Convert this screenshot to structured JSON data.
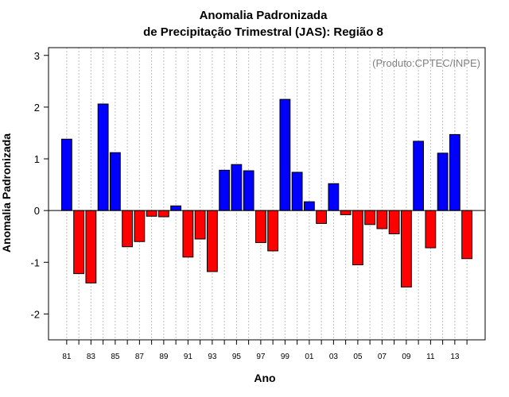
{
  "chart_data": {
    "type": "bar",
    "title_line1": "Anomalia Padronizada",
    "title_line2": "de Precipitação Trimestral (JAS): Região 8",
    "xlabel": "Ano",
    "ylabel": "Anomalia Padronizada",
    "annotation": "(Produto:CPTEC/INPE)",
    "ylim": [
      -2.5,
      3.15
    ],
    "yticks": [
      -2,
      -1,
      0,
      1,
      2,
      3
    ],
    "ytick_labels": [
      "-2",
      "-1",
      "0",
      "1",
      "2",
      "3"
    ],
    "categories": [
      "81",
      "82",
      "83",
      "84",
      "85",
      "86",
      "87",
      "88",
      "89",
      "90",
      "91",
      "92",
      "93",
      "94",
      "95",
      "96",
      "97",
      "98",
      "99",
      "00",
      "01",
      "02",
      "03",
      "04",
      "05",
      "06",
      "07",
      "08",
      "09",
      "10",
      "11",
      "12",
      "13",
      "14"
    ],
    "xtick_labels": [
      "81",
      "83",
      "85",
      "87",
      "89",
      "91",
      "93",
      "95",
      "97",
      "99",
      "01",
      "03",
      "05",
      "07",
      "09",
      "11",
      "13"
    ],
    "values": [
      1.38,
      -1.22,
      -1.4,
      2.06,
      1.12,
      -0.7,
      -0.6,
      -0.11,
      -0.12,
      0.09,
      -0.9,
      -0.55,
      -1.18,
      0.78,
      0.89,
      0.77,
      -0.62,
      -0.78,
      2.15,
      0.74,
      0.17,
      -0.25,
      0.52,
      -0.08,
      -1.05,
      -0.27,
      -0.35,
      -0.45,
      -1.48,
      1.34,
      -0.72,
      1.11,
      1.47,
      -0.93
    ],
    "colors": {
      "positive": "#0000ff",
      "negative": "#ff0000",
      "grid": "#c0c0c0",
      "zero_line": "#000000"
    }
  }
}
